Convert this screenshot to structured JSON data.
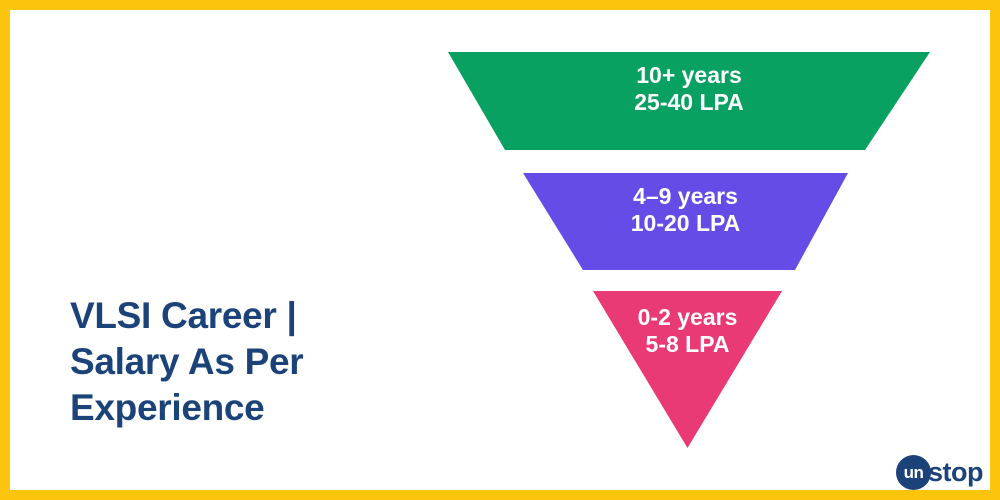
{
  "page": {
    "background": "#FFFFFF",
    "border_color": "#FBC40D"
  },
  "title": {
    "line1": "VLSI Career |",
    "line2": "Salary As Per",
    "line3": "Experience",
    "color": "#1C4379"
  },
  "funnel": {
    "text_color": "#FFFFFF",
    "segments": [
      {
        "experience": "10+ years",
        "salary": "25-40 LPA",
        "color": "#09A161"
      },
      {
        "experience": "4–9 years",
        "salary": "10-20 LPA",
        "color": "#654CE6"
      },
      {
        "experience": "0-2 years",
        "salary": "5-8 LPA",
        "color": "#E93A76"
      }
    ]
  },
  "logo": {
    "prefix": "un",
    "suffix": "stop",
    "color": "#1C4379"
  },
  "chart_data": {
    "type": "funnel",
    "title": "VLSI Career | Salary As Per Experience",
    "categories": [
      "10+ years",
      "4–9 years",
      "0-2 years"
    ],
    "values": [
      "25-40 LPA",
      "10-20 LPA",
      "5-8 LPA"
    ],
    "salary_min_lpa": [
      25,
      10,
      5
    ],
    "salary_max_lpa": [
      40,
      20,
      8
    ],
    "layout": "inverted pyramid, widest level (most experience, highest salary) at top, narrowing to a point at bottom",
    "legend": "none",
    "colors": [
      "#09A161",
      "#654CE6",
      "#E93A76"
    ]
  }
}
